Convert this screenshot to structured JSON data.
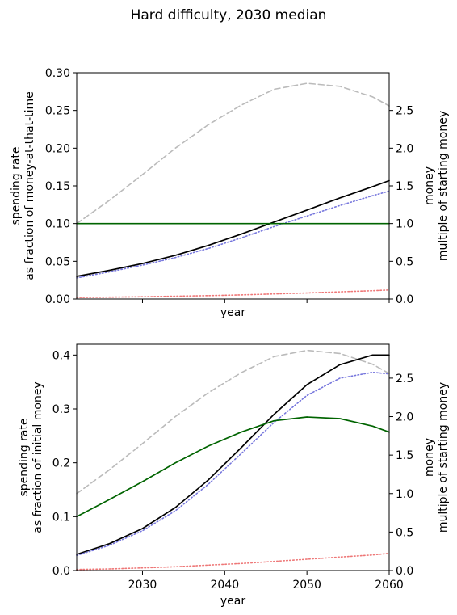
{
  "title": "Hard difficulty, 2030 median",
  "colors": {
    "money": "#bbbbbb",
    "total_spending": "#000000",
    "research": "#7777dd",
    "influence": "#ee7777",
    "rate": "#006400"
  },
  "chart_data": [
    {
      "type": "line",
      "xlim": [
        2022,
        2060
      ],
      "xticks": [
        2030,
        2040,
        2050,
        2060
      ],
      "xlabel": "year",
      "show_x_tick_labels": false,
      "left_axis": {
        "label_line1": "spending rate",
        "label_line2": "as fraction of money-at-that-time",
        "ylim": [
          0,
          0.3
        ],
        "ticks": [
          "0.00",
          "0.05",
          "0.10",
          "0.15",
          "0.20",
          "0.25",
          "0.30"
        ]
      },
      "right_axis": {
        "label_line1": "money",
        "label_line2": "multiple of starting money",
        "ylim": [
          0,
          3.0
        ],
        "ticks": [
          "0.0",
          "0.5",
          "1.0",
          "1.5",
          "2.0",
          "2.5"
        ]
      },
      "series": [
        {
          "axis": "right",
          "style": "dashed",
          "color_key": "money",
          "x": [
            2022,
            2026,
            2030,
            2034,
            2038,
            2042,
            2046,
            2050,
            2054,
            2058,
            2060
          ],
          "y": [
            1.0,
            1.31,
            1.65,
            2.0,
            2.31,
            2.57,
            2.78,
            2.86,
            2.82,
            2.68,
            2.56
          ]
        },
        {
          "axis": "left",
          "style": "solid",
          "color_key": "total_spending",
          "x": [
            2022,
            2026,
            2030,
            2034,
            2038,
            2042,
            2046,
            2050,
            2054,
            2058,
            2060
          ],
          "y": [
            0.03,
            0.038,
            0.047,
            0.058,
            0.071,
            0.086,
            0.102,
            0.118,
            0.134,
            0.149,
            0.157
          ]
        },
        {
          "axis": "left",
          "style": "dotted",
          "color_key": "research",
          "x": [
            2022,
            2026,
            2030,
            2034,
            2038,
            2042,
            2046,
            2050,
            2054,
            2058,
            2060
          ],
          "y": [
            0.028,
            0.036,
            0.045,
            0.055,
            0.067,
            0.081,
            0.096,
            0.11,
            0.124,
            0.137,
            0.143
          ]
        },
        {
          "axis": "left",
          "style": "dotted",
          "color_key": "influence",
          "x": [
            2022,
            2026,
            2030,
            2034,
            2038,
            2042,
            2046,
            2050,
            2054,
            2058,
            2060
          ],
          "y": [
            0.002,
            0.0025,
            0.003,
            0.0037,
            0.0045,
            0.0055,
            0.0067,
            0.008,
            0.0095,
            0.011,
            0.012
          ]
        },
        {
          "axis": "left",
          "style": "solid",
          "color_key": "rate",
          "x": [
            2022,
            2060
          ],
          "y": [
            0.1,
            0.1
          ]
        }
      ]
    },
    {
      "type": "line",
      "xlim": [
        2022,
        2060
      ],
      "xticks": [
        2030,
        2040,
        2050,
        2060
      ],
      "xtick_labels": [
        "2030",
        "2040",
        "2050",
        "2060"
      ],
      "xlabel": "year",
      "show_x_tick_labels": true,
      "left_axis": {
        "label_line1": "spending rate",
        "label_line2": "as fraction of initial money",
        "ylim": [
          0,
          0.42
        ],
        "ticks": [
          "0.0",
          "0.1",
          "0.2",
          "0.3",
          "0.4"
        ]
      },
      "right_axis": {
        "label_line1": "money",
        "label_line2": "multiple of starting money",
        "ylim": [
          0,
          2.94
        ],
        "ticks": [
          "0.0",
          "0.5",
          "1.0",
          "1.5",
          "2.0",
          "2.5"
        ]
      },
      "series": [
        {
          "axis": "right",
          "style": "dashed",
          "color_key": "money",
          "x": [
            2022,
            2026,
            2030,
            2034,
            2038,
            2042,
            2046,
            2050,
            2054,
            2058,
            2060
          ],
          "y": [
            1.0,
            1.31,
            1.65,
            2.0,
            2.31,
            2.57,
            2.78,
            2.86,
            2.82,
            2.68,
            2.56
          ]
        },
        {
          "axis": "left",
          "style": "solid",
          "color_key": "total_spending",
          "x": [
            2022,
            2026,
            2030,
            2034,
            2038,
            2042,
            2046,
            2050,
            2054,
            2058,
            2060
          ],
          "y": [
            0.03,
            0.05,
            0.078,
            0.117,
            0.168,
            0.228,
            0.29,
            0.345,
            0.382,
            0.4,
            0.4
          ]
        },
        {
          "axis": "left",
          "style": "dotted",
          "color_key": "research",
          "x": [
            2022,
            2026,
            2030,
            2034,
            2038,
            2042,
            2046,
            2050,
            2054,
            2058,
            2060
          ],
          "y": [
            0.028,
            0.047,
            0.074,
            0.111,
            0.16,
            0.217,
            0.275,
            0.325,
            0.357,
            0.368,
            0.365
          ]
        },
        {
          "axis": "left",
          "style": "dotted",
          "color_key": "influence",
          "x": [
            2022,
            2026,
            2030,
            2034,
            2038,
            2042,
            2046,
            2050,
            2054,
            2058,
            2060
          ],
          "y": [
            0.002,
            0.003,
            0.005,
            0.007,
            0.01,
            0.013,
            0.017,
            0.021,
            0.025,
            0.029,
            0.032
          ]
        },
        {
          "axis": "left",
          "style": "solid",
          "color_key": "rate",
          "x": [
            2022,
            2026,
            2030,
            2034,
            2038,
            2042,
            2046,
            2050,
            2054,
            2058,
            2060
          ],
          "y": [
            0.1,
            0.132,
            0.165,
            0.2,
            0.231,
            0.257,
            0.278,
            0.285,
            0.282,
            0.268,
            0.257
          ]
        }
      ]
    }
  ]
}
